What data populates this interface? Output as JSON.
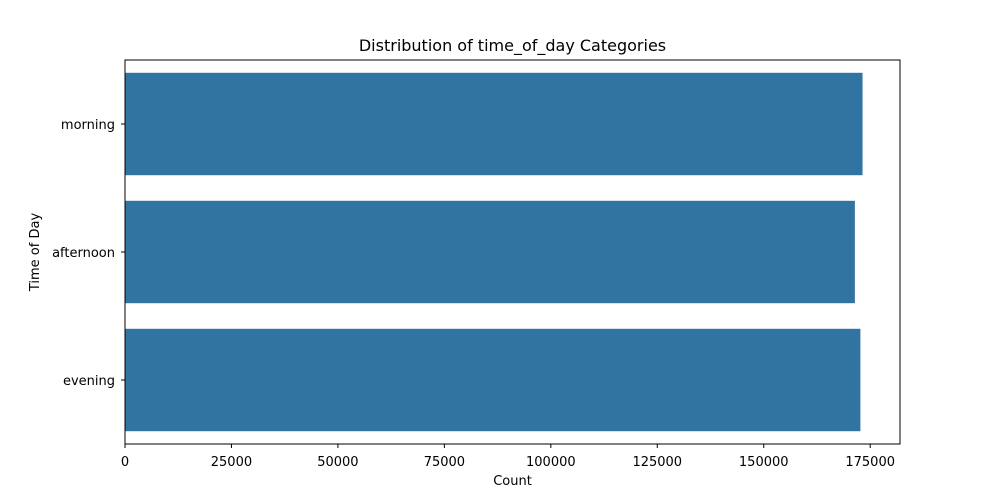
{
  "chart_data": {
    "type": "bar",
    "orientation": "horizontal",
    "title": "Distribution of time_of_day Categories",
    "xlabel": "Count",
    "ylabel": "Time of Day",
    "categories": [
      "morning",
      "afternoon",
      "evening"
    ],
    "values": [
      173200,
      171400,
      172700
    ],
    "xlim": [
      0,
      182000
    ],
    "xticks": [
      0,
      25000,
      50000,
      75000,
      100000,
      125000,
      150000,
      175000
    ],
    "bar_color": "#3274a1",
    "grid": false,
    "legend": false
  }
}
